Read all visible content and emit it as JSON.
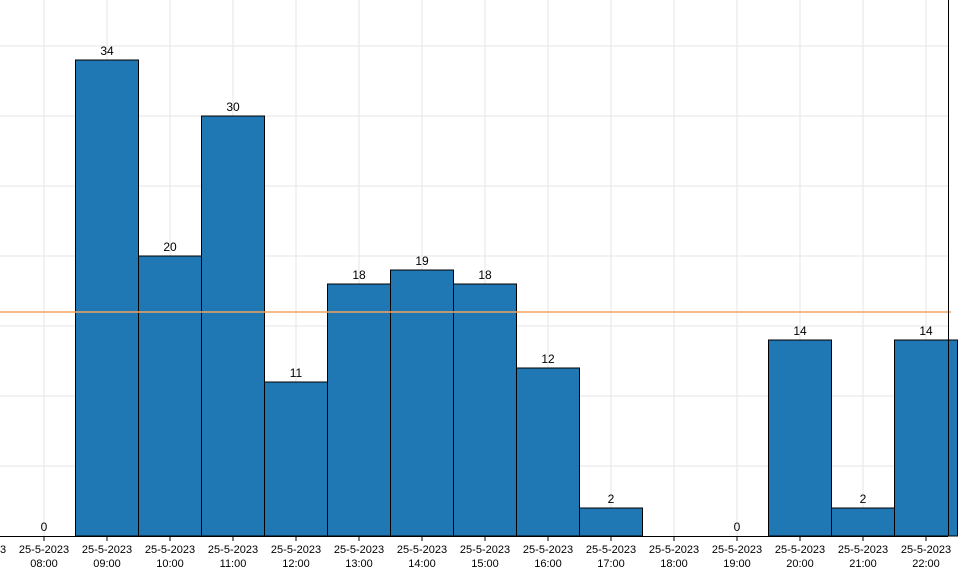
{
  "chart_data": {
    "type": "bar",
    "title": "",
    "xlabel": "",
    "ylabel": "",
    "ylim": [
      0,
      38
    ],
    "grid": true,
    "reference_line": {
      "value": 16,
      "color": "#f4a460"
    },
    "bar_color": "#1f77b4",
    "bars": [
      {
        "start": 7.5,
        "end": 8.5,
        "value": 0
      },
      {
        "start": 8.5,
        "end": 9.5,
        "value": 34
      },
      {
        "start": 9.5,
        "end": 10.5,
        "value": 20
      },
      {
        "start": 10.5,
        "end": 11.5,
        "value": 30
      },
      {
        "start": 11.5,
        "end": 12.5,
        "value": 11
      },
      {
        "start": 12.5,
        "end": 13.5,
        "value": 18
      },
      {
        "start": 13.5,
        "end": 14.5,
        "value": 19
      },
      {
        "start": 14.5,
        "end": 15.5,
        "value": 18
      },
      {
        "start": 15.5,
        "end": 16.5,
        "value": 12
      },
      {
        "start": 16.5,
        "end": 17.5,
        "value": 2
      },
      {
        "start": 17.5,
        "end": 18.5,
        "value": 0
      },
      {
        "start": 18.5,
        "end": 19.5,
        "value": 0
      },
      {
        "start": 19.5,
        "end": 20.5,
        "value": 14
      },
      {
        "start": 20.5,
        "end": 21.5,
        "value": 2
      },
      {
        "start": 21.5,
        "end": 22.5,
        "value": 14
      }
    ],
    "zero_labels_shown": [
      0,
      11
    ],
    "x_ticks": [
      {
        "pos": 7.5,
        "date": "3",
        "time": ""
      },
      {
        "pos": 8.0,
        "date": "25-5-2023",
        "time": "08:00"
      },
      {
        "pos": 9.0,
        "date": "25-5-2023",
        "time": "09:00"
      },
      {
        "pos": 10.0,
        "date": "25-5-2023",
        "time": "10:00"
      },
      {
        "pos": 11.0,
        "date": "25-5-2023",
        "time": "11:00"
      },
      {
        "pos": 12.0,
        "date": "25-5-2023",
        "time": "12:00"
      },
      {
        "pos": 13.0,
        "date": "25-5-2023",
        "time": "13:00"
      },
      {
        "pos": 14.0,
        "date": "25-5-2023",
        "time": "14:00"
      },
      {
        "pos": 15.0,
        "date": "25-5-2023",
        "time": "15:00"
      },
      {
        "pos": 16.0,
        "date": "25-5-2023",
        "time": "16:00"
      },
      {
        "pos": 17.0,
        "date": "25-5-2023",
        "time": "17:00"
      },
      {
        "pos": 18.0,
        "date": "25-5-2023",
        "time": "18:00"
      },
      {
        "pos": 19.0,
        "date": "25-5-2023",
        "time": "19:00"
      },
      {
        "pos": 20.0,
        "date": "25-5-2023",
        "time": "20:00"
      },
      {
        "pos": 21.0,
        "date": "25-5-2023",
        "time": "21:00"
      },
      {
        "pos": 22.0,
        "date": "25-5-2023",
        "time": "22:00"
      }
    ],
    "y_grid": [
      5,
      10,
      15,
      20,
      25,
      30,
      35
    ]
  }
}
